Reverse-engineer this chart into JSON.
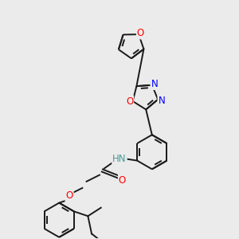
{
  "bg_color": "#ebebeb",
  "bond_color": "#1a1a1a",
  "bond_width": 1.4,
  "atom_colors": {
    "O": "#ff0000",
    "N": "#0000ff",
    "H": "#4a9a9a",
    "C": "#1a1a1a"
  },
  "font_size": 8.5
}
